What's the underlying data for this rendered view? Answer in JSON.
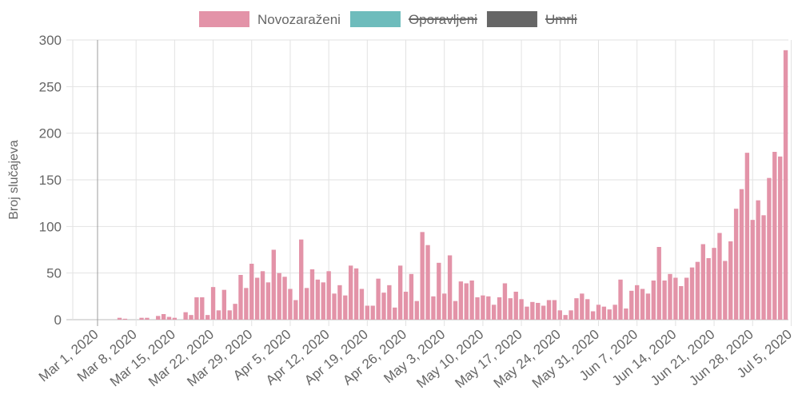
{
  "chart_data": {
    "type": "bar",
    "ylabel": "Broj slučajeva",
    "ylim": [
      0,
      300
    ],
    "yticks": [
      0,
      50,
      100,
      150,
      200,
      250,
      300
    ],
    "x_tick_labels": [
      "Mar 1, 2020",
      "Mar 8, 2020",
      "Mar 15, 2020",
      "Mar 22, 2020",
      "Mar 29, 2020",
      "Apr 5, 2020",
      "Apr 12, 2020",
      "Apr 19, 2020",
      "Apr 26, 2020",
      "May 3, 2020",
      "May 10, 2020",
      "May 17, 2020",
      "May 24, 2020",
      "May 31, 2020",
      "Jun 7, 2020",
      "Jun 14, 2020",
      "Jun 21, 2020",
      "Jun 28, 2020",
      "Jul 5, 2020"
    ],
    "x_start_date": "2020-02-26",
    "x_end_date": "2020-07-05",
    "legend_position": "top",
    "grid": true,
    "series": [
      {
        "name": "Novozaraženi",
        "color": "#e393a8",
        "hidden": false,
        "values": [
          0,
          0,
          0,
          0,
          0,
          0,
          0,
          0,
          2,
          1,
          0,
          0,
          2,
          2,
          0,
          4,
          6,
          3,
          2,
          0,
          8,
          5,
          24,
          24,
          5,
          35,
          10,
          32,
          10,
          17,
          48,
          34,
          60,
          45,
          52,
          40,
          75,
          50,
          46,
          33,
          21,
          86,
          34,
          54,
          43,
          40,
          52,
          28,
          37,
          26,
          58,
          55,
          33,
          15,
          15,
          44,
          29,
          37,
          13,
          58,
          30,
          49,
          20,
          94,
          80,
          25,
          61,
          28,
          69,
          20,
          41,
          39,
          42,
          24,
          26,
          25,
          16,
          24,
          39,
          23,
          30,
          22,
          14,
          19,
          18,
          15,
          21,
          21,
          10,
          5,
          10,
          23,
          28,
          22,
          9,
          16,
          14,
          11,
          16,
          43,
          12,
          31,
          37,
          33,
          28,
          42,
          78,
          42,
          49,
          45,
          36,
          45,
          56,
          62,
          81,
          66,
          77,
          93,
          63,
          84,
          119,
          140,
          179,
          107,
          128,
          112,
          152,
          180,
          175,
          289
        ]
      },
      {
        "name": "Oporavljeni",
        "color": "#6ebcbc",
        "hidden": true,
        "values": []
      },
      {
        "name": "Umrli",
        "color": "#666666",
        "hidden": true,
        "values": []
      }
    ]
  }
}
